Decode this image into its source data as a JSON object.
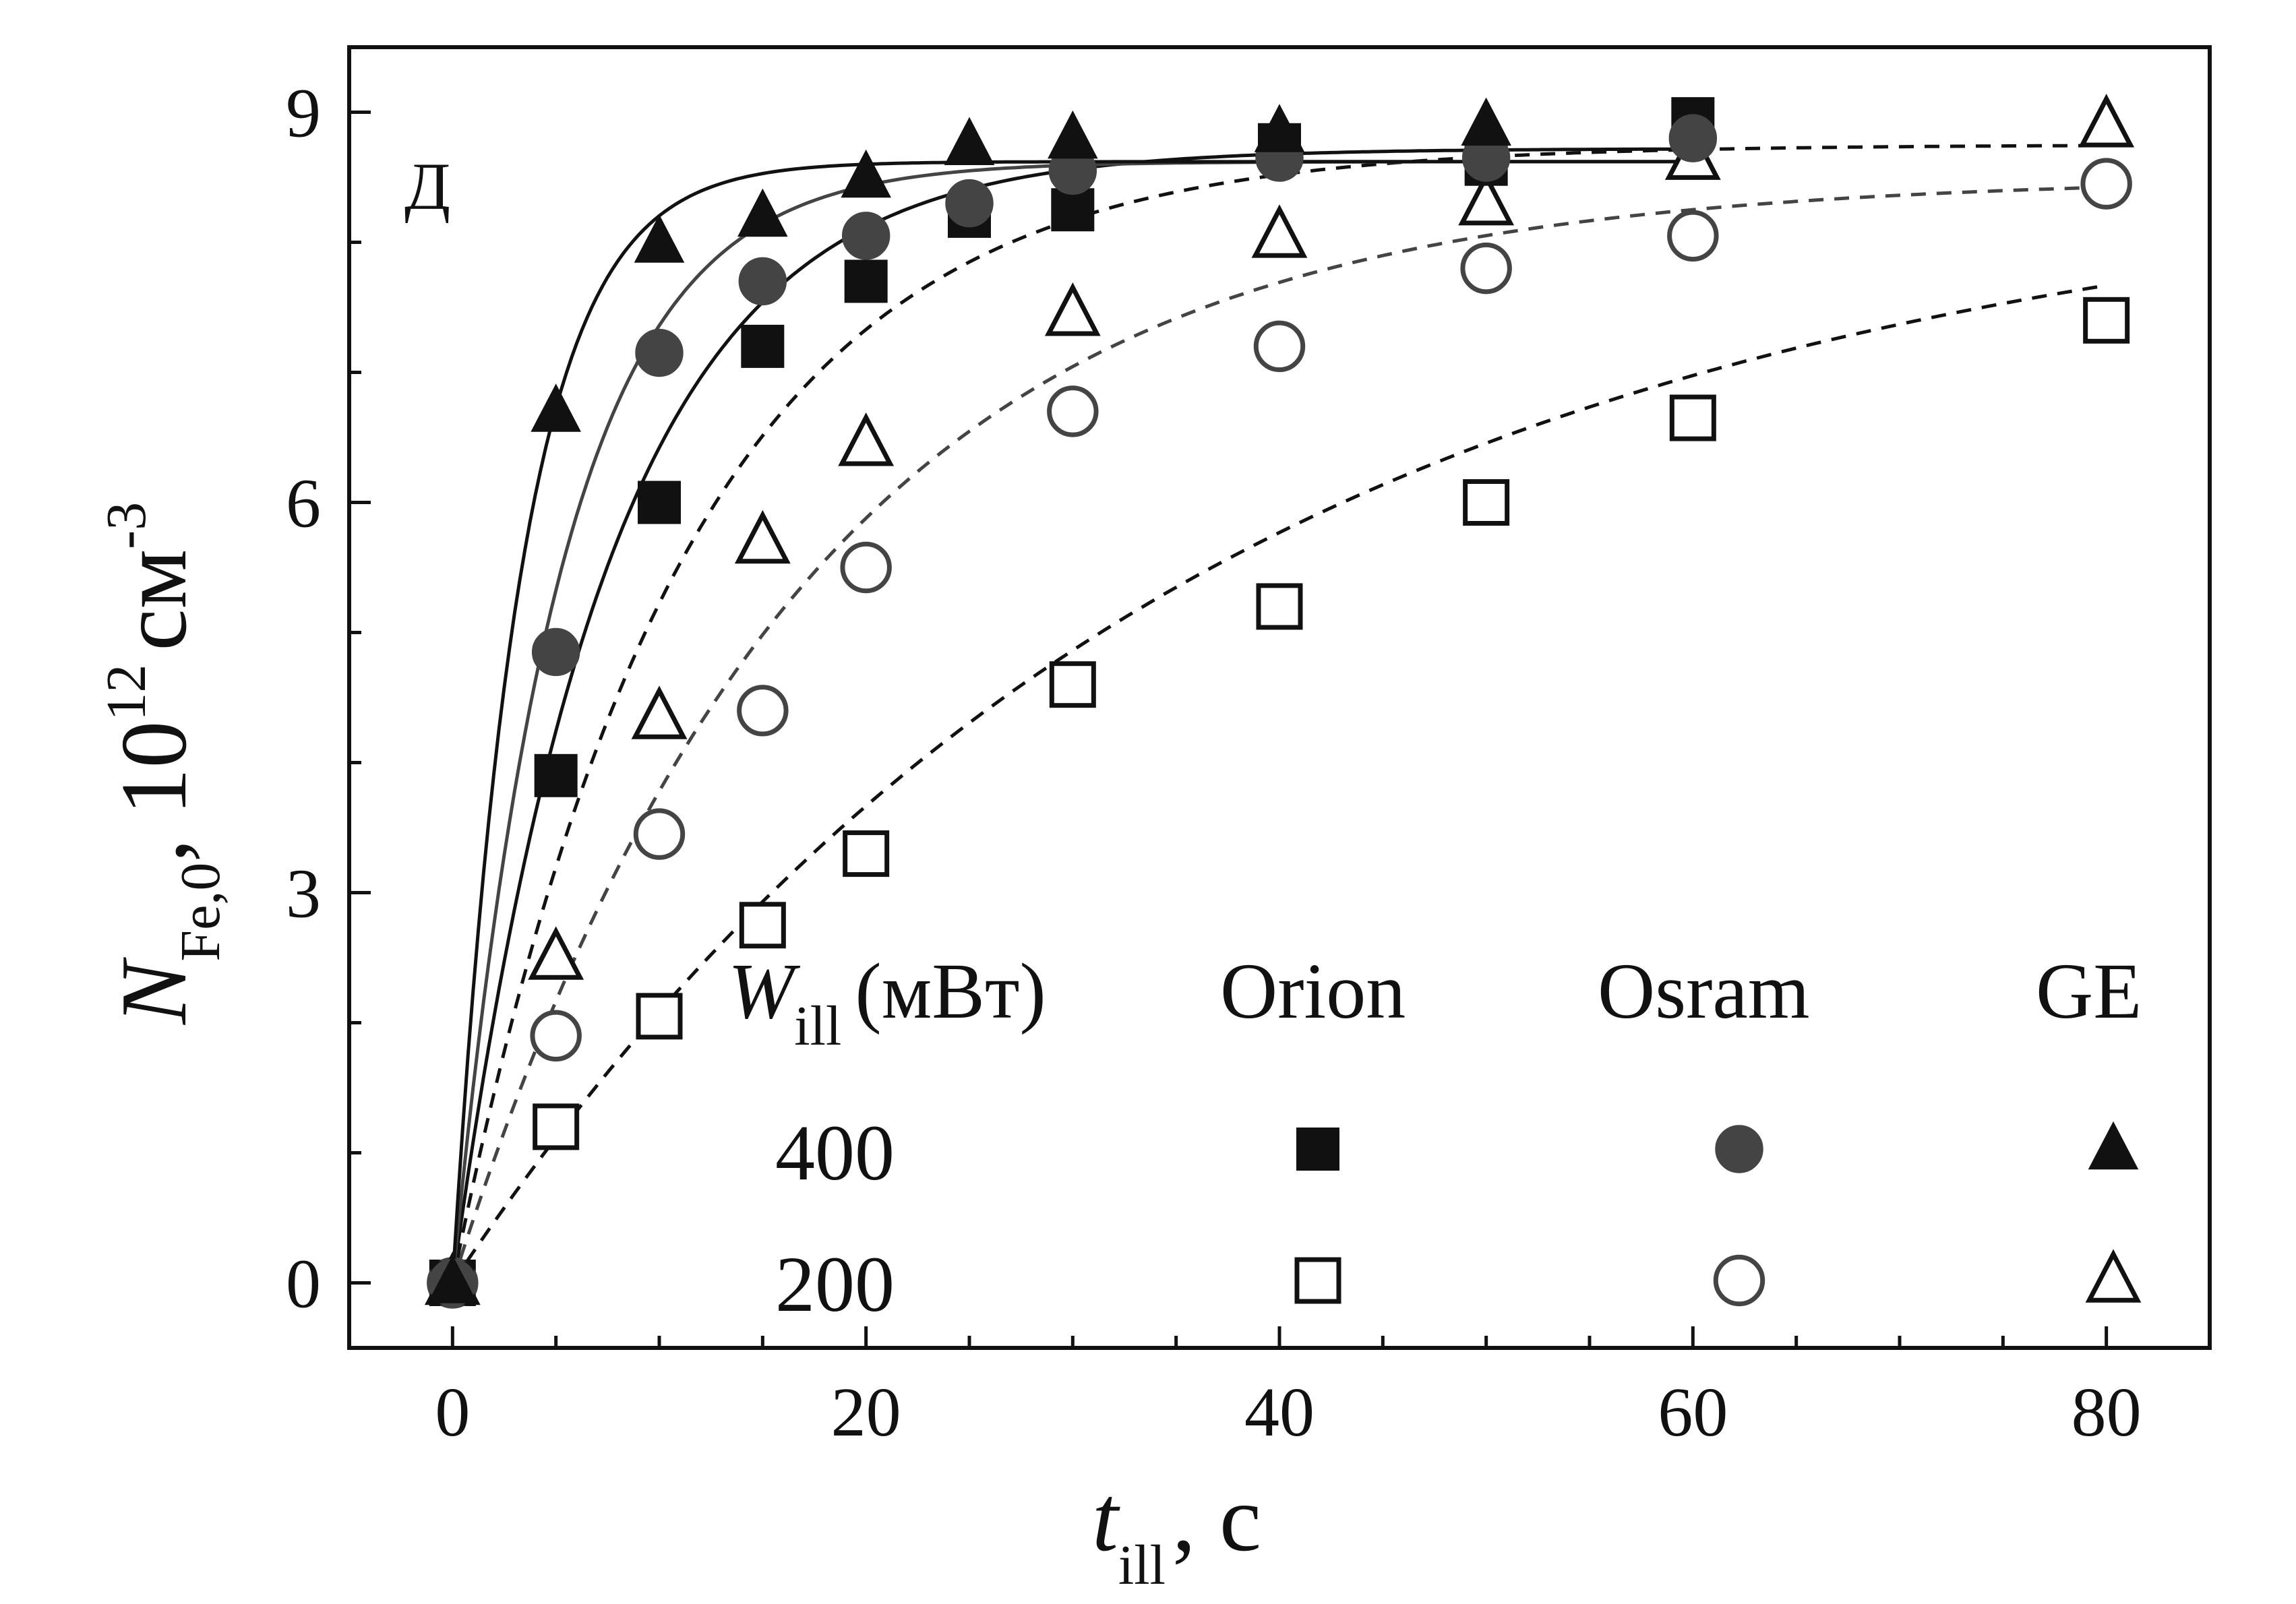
{
  "chart_data": {
    "type": "scatter",
    "panel_label": "Д",
    "xlabel": {
      "main": "t",
      "sub": "ill",
      "unit": ", с"
    },
    "ylabel": {
      "main": "N",
      "sub": "Fe,0",
      "unit": ", 10",
      "exp": "12",
      "unit2": "см",
      "exp2": "-3"
    },
    "xlim": [
      -5,
      85
    ],
    "ylim": [
      -0.5,
      9.5
    ],
    "xticks": [
      0,
      20,
      40,
      60,
      80
    ],
    "yticks": [
      0,
      3,
      6,
      9
    ],
    "grid": false,
    "legend": {
      "header_prefix": "W",
      "header_sub": "ill",
      "header_suffix": "(мВт)",
      "columns": [
        "Orion",
        "Osram",
        "GE"
      ],
      "rows": [
        "400",
        "200"
      ]
    },
    "colors": {
      "dark": "#111111",
      "gray": "#444444"
    },
    "series": [
      {
        "lamp": "Orion",
        "power": "400",
        "marker": "square",
        "filled": true,
        "color": "#111111",
        "x": [
          0,
          5,
          10,
          15,
          20,
          25,
          30,
          40,
          50,
          60
        ],
        "y": [
          0,
          3.9,
          6.0,
          7.2,
          7.7,
          8.2,
          8.25,
          8.75,
          8.6,
          8.95
        ]
      },
      {
        "lamp": "Osram",
        "power": "400",
        "marker": "circle",
        "filled": true,
        "color": "#444444",
        "x": [
          0,
          5,
          10,
          15,
          20,
          25,
          30,
          40,
          50,
          60
        ],
        "y": [
          0,
          4.85,
          7.15,
          7.7,
          8.05,
          8.3,
          8.55,
          8.65,
          8.65,
          8.8
        ]
      },
      {
        "lamp": "GE",
        "power": "400",
        "marker": "triangle",
        "filled": true,
        "color": "#111111",
        "x": [
          0,
          5,
          10,
          15,
          20,
          25,
          30,
          40,
          50
        ],
        "y": [
          0,
          6.7,
          8.0,
          8.2,
          8.5,
          8.75,
          8.8,
          8.85,
          8.9
        ]
      },
      {
        "lamp": "Orion",
        "power": "200",
        "marker": "square",
        "filled": false,
        "color": "#111111",
        "x": [
          0,
          5,
          10,
          15,
          20,
          30,
          40,
          50,
          60,
          80
        ],
        "y": [
          0,
          1.2,
          2.05,
          2.75,
          3.3,
          4.6,
          5.2,
          6.0,
          6.65,
          7.4
        ]
      },
      {
        "lamp": "Osram",
        "power": "200",
        "marker": "circle",
        "filled": false,
        "color": "#444444",
        "x": [
          0,
          5,
          10,
          15,
          20,
          30,
          40,
          50,
          60,
          80
        ],
        "y": [
          0,
          1.9,
          3.45,
          4.4,
          5.5,
          6.7,
          7.2,
          7.8,
          8.05,
          8.45
        ]
      },
      {
        "lamp": "GE",
        "power": "200",
        "marker": "triangle",
        "filled": false,
        "color": "#111111",
        "x": [
          0,
          5,
          10,
          15,
          20,
          30,
          40,
          50,
          60,
          80
        ],
        "y": [
          0,
          2.5,
          4.35,
          5.7,
          6.45,
          7.45,
          8.05,
          8.3,
          8.65,
          8.9
        ]
      }
    ],
    "fits": [
      {
        "lamp": "Orion",
        "power": "200",
        "style": "dashed",
        "color": "#111111",
        "ymax": 8.6,
        "tau": 36,
        "xmax": 80
      },
      {
        "lamp": "Osram",
        "power": "200",
        "style": "dashed",
        "color": "#444444",
        "ymax": 8.5,
        "tau": 17,
        "xmax": 80
      },
      {
        "lamp": "GE",
        "power": "200",
        "style": "dashed",
        "color": "#111111",
        "ymax": 8.75,
        "tau": 11,
        "xmax": 80
      },
      {
        "lamp": "Orion",
        "power": "400",
        "style": "solid",
        "color": "#111111",
        "ymax": 8.72,
        "tau": 7.5,
        "xmax": 60
      },
      {
        "lamp": "Osram",
        "power": "400",
        "style": "solid",
        "color": "#444444",
        "ymax": 8.62,
        "tau": 5.2,
        "xmax": 60
      },
      {
        "lamp": "GE",
        "power": "400",
        "style": "solid",
        "color": "#111111",
        "ymax": 8.62,
        "tau": 3.3,
        "xmax": 60
      }
    ]
  }
}
